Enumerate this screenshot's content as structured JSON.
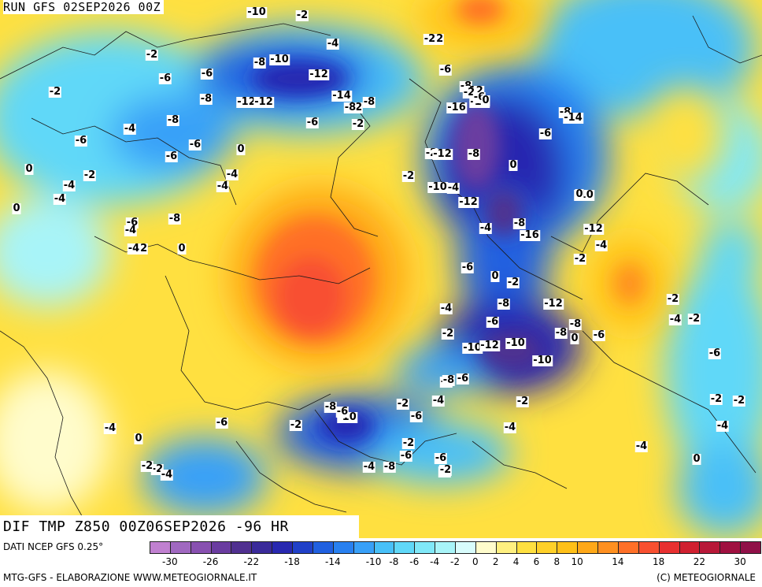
{
  "header": {
    "run_title": "RUN GFS 02SEP2026 00Z",
    "field_title": "DIF TMP Z850 00Z06SEP2026 -96 HR"
  },
  "footer": {
    "data_source": "DATI NCEP GFS 0.25°",
    "credits_left": "MTG-GFS - ELABORAZIONE WWW.METEOGIORNALE.IT",
    "credits_right": "(C) METEOGIORNALE"
  },
  "legend": {
    "ticks": [
      "-30",
      "-26",
      "-22",
      "-18",
      "-14",
      "-10",
      "-8",
      "-6",
      "-4",
      "-2",
      "0",
      "2",
      "4",
      "6",
      "8",
      "10",
      "14",
      "18",
      "22",
      "30"
    ],
    "colors": [
      "#c080d0",
      "#a068c0",
      "#8850b0",
      "#6a3ca0",
      "#503090",
      "#3a2a9a",
      "#2828b0",
      "#2040c8",
      "#2060e0",
      "#2880f0",
      "#38a0f8",
      "#48c0f8",
      "#60d8f8",
      "#80e8f8",
      "#a8f4f8",
      "#d8fcfc",
      "#fffccc",
      "#fff080",
      "#ffe040",
      "#ffd028",
      "#ffc018",
      "#ffa818",
      "#ff9020",
      "#ff7028",
      "#f85030",
      "#e83030",
      "#d02030",
      "#b81838",
      "#a01040",
      "#901048"
    ]
  },
  "map": {
    "contour_labels": [
      {
        "text": "-2"
      },
      {
        "text": "-4"
      },
      {
        "text": "-2"
      },
      {
        "text": "-4"
      },
      {
        "text": "-6"
      },
      {
        "text": "-2"
      },
      {
        "text": "-6"
      },
      {
        "text": "-8"
      },
      {
        "text": "-10"
      },
      {
        "text": "-2"
      },
      {
        "text": "-8"
      },
      {
        "text": "-2"
      },
      {
        "text": "-4"
      },
      {
        "text": "-6"
      },
      {
        "text": "-12"
      },
      {
        "text": "-8"
      },
      {
        "text": "-12"
      },
      {
        "text": "-14"
      },
      {
        "text": "-8"
      },
      {
        "text": "-12"
      },
      {
        "text": "-8"
      },
      {
        "text": "-6"
      },
      {
        "text": "-2"
      },
      {
        "text": "0"
      },
      {
        "text": "-2"
      },
      {
        "text": "-4"
      },
      {
        "text": "-4"
      },
      {
        "text": "-6"
      },
      {
        "text": "0"
      },
      {
        "text": "0"
      },
      {
        "text": "-4"
      },
      {
        "text": "-2"
      },
      {
        "text": "-4"
      },
      {
        "text": "-2"
      },
      {
        "text": "-8"
      },
      {
        "text": "-6"
      },
      {
        "text": "-6"
      },
      {
        "text": "-4"
      },
      {
        "text": "-4"
      },
      {
        "text": "0"
      },
      {
        "text": "-2"
      },
      {
        "text": "-6"
      },
      {
        "text": "-8"
      },
      {
        "text": "-12"
      },
      {
        "text": "-16"
      },
      {
        "text": "-18"
      },
      {
        "text": "-12"
      },
      {
        "text": "-2"
      },
      {
        "text": "-10"
      },
      {
        "text": "0"
      },
      {
        "text": "-12"
      },
      {
        "text": "-4"
      },
      {
        "text": "-6"
      },
      {
        "text": "-8"
      },
      {
        "text": "-14"
      },
      {
        "text": "-10"
      },
      {
        "text": "-8"
      },
      {
        "text": "-16"
      },
      {
        "text": "-12"
      },
      {
        "text": "-4"
      },
      {
        "text": "-2"
      },
      {
        "text": "-6"
      },
      {
        "text": "0"
      },
      {
        "text": "-2"
      },
      {
        "text": "-8"
      },
      {
        "text": "-4"
      },
      {
        "text": "0"
      },
      {
        "text": "-6"
      },
      {
        "text": "-12"
      },
      {
        "text": "-2"
      },
      {
        "text": "-8"
      },
      {
        "text": "0"
      },
      {
        "text": "-10"
      },
      {
        "text": "-12"
      },
      {
        "text": "-10"
      },
      {
        "text": "-10"
      },
      {
        "text": "-4"
      },
      {
        "text": "-6"
      },
      {
        "text": "-8"
      },
      {
        "text": "-2"
      },
      {
        "text": "-10"
      },
      {
        "text": "-6"
      },
      {
        "text": "-8"
      },
      {
        "text": "-6"
      },
      {
        "text": "-2"
      },
      {
        "text": "-4"
      },
      {
        "text": "-2"
      },
      {
        "text": "-4"
      },
      {
        "text": "0"
      },
      {
        "text": "-2"
      },
      {
        "text": "-4"
      },
      {
        "text": "-6"
      },
      {
        "text": "-2"
      },
      {
        "text": "-2"
      },
      {
        "text": "-6"
      },
      {
        "text": "-6"
      },
      {
        "text": "-4"
      },
      {
        "text": "-4"
      },
      {
        "text": "-4"
      },
      {
        "text": "-8"
      },
      {
        "text": "-2"
      },
      {
        "text": "-4"
      },
      {
        "text": "0"
      },
      {
        "text": "-2"
      },
      {
        "text": "-2"
      },
      {
        "text": "-4"
      },
      {
        "text": "-6"
      },
      {
        "text": "-4"
      },
      {
        "text": "-2"
      },
      {
        "text": "-2"
      },
      {
        "text": "-6"
      },
      {
        "text": "-8"
      },
      {
        "text": "-4"
      },
      {
        "text": "-2"
      },
      {
        "text": "-6"
      },
      {
        "text": "0"
      },
      {
        "text": "-8"
      },
      {
        "text": "-10"
      },
      {
        "text": "-2"
      }
    ]
  }
}
